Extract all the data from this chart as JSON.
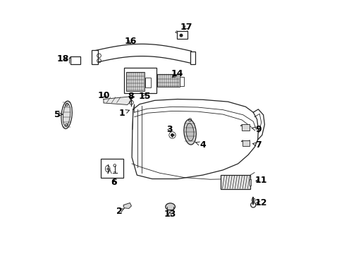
{
  "bg_color": "#ffffff",
  "line_color": "#222222",
  "label_color": "#000000",
  "fig_width": 4.89,
  "fig_height": 3.6,
  "dpi": 100,
  "label_fontsize": 9,
  "label_positions": {
    "1": [
      0.3,
      0.555,
      0.34,
      0.57
    ],
    "2": [
      0.29,
      0.168,
      0.31,
      0.178
    ],
    "3": [
      0.49,
      0.49,
      0.5,
      0.473
    ],
    "4": [
      0.62,
      0.43,
      0.59,
      0.44
    ],
    "5": [
      0.046,
      0.55,
      0.068,
      0.55
    ],
    "6": [
      0.27,
      0.28,
      0.27,
      0.3
    ],
    "7": [
      0.84,
      0.43,
      0.815,
      0.435
    ],
    "8": [
      0.335,
      0.62,
      0.335,
      0.605
    ],
    "9": [
      0.84,
      0.49,
      0.812,
      0.497
    ],
    "10": [
      0.23,
      0.625,
      0.248,
      0.608
    ],
    "11": [
      0.85,
      0.29,
      0.82,
      0.285
    ],
    "12": [
      0.85,
      0.2,
      0.822,
      0.2
    ],
    "13": [
      0.49,
      0.155,
      0.49,
      0.175
    ],
    "14": [
      0.52,
      0.71,
      0.49,
      0.69
    ],
    "15": [
      0.39,
      0.62,
      0.4,
      0.64
    ],
    "16": [
      0.335,
      0.84,
      0.335,
      0.818
    ],
    "17": [
      0.556,
      0.895,
      0.538,
      0.878
    ],
    "18": [
      0.068,
      0.77,
      0.095,
      0.762
    ]
  }
}
